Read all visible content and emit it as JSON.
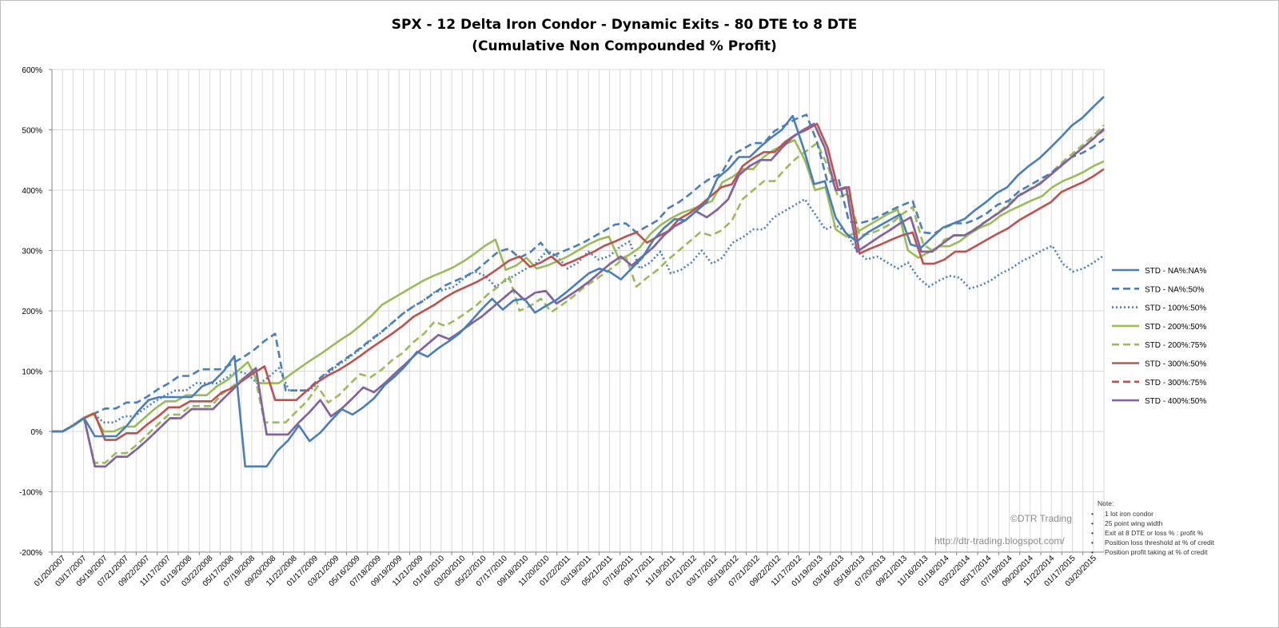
{
  "chart_data": {
    "type": "line",
    "title_lines": [
      "SPX  -  12 Delta Iron Condor  -  Dynamic Exits  -  80 DTE to 8 DTE",
      "(Cumulative Non Compounded % Profit)"
    ],
    "ylim": [
      -200,
      600
    ],
    "y_ticks": [
      -200,
      -100,
      0,
      100,
      200,
      300,
      400,
      500,
      600
    ],
    "y_tick_labels": [
      "-200%",
      "-100%",
      "0%",
      "100%",
      "200%",
      "300%",
      "400%",
      "500%",
      "600%"
    ],
    "x_tick_labels": [
      "01/20/2007",
      "03/17/2007",
      "05/19/2007",
      "07/21/2007",
      "09/22/2007",
      "11/17/2007",
      "01/19/2008",
      "03/22/2008",
      "05/17/2008",
      "07/19/2008",
      "09/20/2008",
      "11/22/2008",
      "01/17/2009",
      "03/21/2009",
      "05/16/2009",
      "07/18/2009",
      "09/19/2009",
      "11/21/2009",
      "01/16/2010",
      "03/20/2010",
      "05/22/2010",
      "07/17/2010",
      "09/18/2010",
      "11/20/2010",
      "01/22/2011",
      "03/19/2011",
      "05/21/2011",
      "07/16/2011",
      "09/17/2011",
      "11/19/2011",
      "01/21/2012",
      "03/17/2012",
      "05/19/2012",
      "07/21/2012",
      "09/22/2012",
      "11/17/2012",
      "01/19/2013",
      "03/16/2013",
      "05/18/2013",
      "07/20/2013",
      "09/21/2013",
      "11/16/2013",
      "01/18/2014",
      "03/22/2014",
      "05/17/2014",
      "07/19/2014",
      "09/20/2014",
      "11/22/2014",
      "01/17/2015",
      "03/20/2015"
    ],
    "series": [
      {
        "name": "STD - NA%:NA%",
        "color": "#4a7ebb",
        "dash": "solid",
        "values": [
          0,
          0,
          10,
          22,
          -8,
          -8,
          -8,
          10,
          33,
          52,
          57,
          57,
          57,
          57,
          75,
          82,
          100,
          125,
          -58,
          -58,
          -58,
          -32,
          -15,
          10,
          -16,
          -2,
          18,
          37,
          28,
          40,
          55,
          77,
          92,
          110,
          132,
          124,
          138,
          150,
          163,
          182,
          202,
          220,
          202,
          217,
          220,
          197,
          208,
          218,
          232,
          247,
          262,
          270,
          264,
          252,
          270,
          288,
          317,
          337,
          352,
          350,
          365,
          380,
          420,
          435,
          455,
          455,
          472,
          487,
          500,
          523,
          470,
          410,
          415,
          355,
          328,
          315,
          330,
          340,
          350,
          360,
          310,
          305,
          322,
          338,
          345,
          352,
          367,
          380,
          395,
          405,
          425,
          440,
          453,
          470,
          488,
          507,
          520,
          538,
          555
        ]
      },
      {
        "name": "STD - NA%:50%",
        "color": "#4a7ebb",
        "dash": "long",
        "values": [
          0,
          0,
          10,
          22,
          30,
          38,
          38,
          48,
          48,
          58,
          70,
          80,
          92,
          92,
          103,
          103,
          103,
          113,
          123,
          135,
          150,
          162,
          68,
          68,
          68,
          85,
          100,
          113,
          125,
          138,
          152,
          165,
          180,
          195,
          207,
          217,
          230,
          242,
          250,
          258,
          268,
          283,
          298,
          303,
          288,
          297,
          313,
          290,
          298,
          305,
          313,
          323,
          333,
          343,
          345,
          330,
          340,
          350,
          370,
          380,
          393,
          408,
          420,
          428,
          458,
          468,
          478,
          478,
          498,
          508,
          518,
          525,
          480,
          412,
          420,
          348,
          345,
          350,
          358,
          367,
          375,
          382,
          330,
          328,
          338,
          345,
          345,
          352,
          362,
          376,
          382,
          398,
          408,
          418,
          428,
          442,
          455,
          462,
          472,
          485
        ]
      },
      {
        "name": "STD - 100%:50%",
        "color": "#4a7ebb",
        "dash": "dot",
        "values": [
          0,
          0,
          10,
          22,
          30,
          15,
          15,
          25,
          25,
          38,
          50,
          60,
          68,
          68,
          80,
          80,
          80,
          90,
          100,
          95,
          78,
          90,
          105,
          68,
          68,
          68,
          85,
          100,
          113,
          125,
          138,
          152,
          165,
          180,
          195,
          207,
          217,
          230,
          235,
          240,
          255,
          265,
          258,
          240,
          250,
          260,
          270,
          280,
          300,
          290,
          270,
          280,
          298,
          285,
          290,
          305,
          315,
          270,
          280,
          298,
          262,
          268,
          280,
          300,
          278,
          288,
          313,
          322,
          335,
          335,
          355,
          365,
          375,
          385,
          360,
          335,
          342,
          330,
          300,
          285,
          290,
          280,
          270,
          280,
          255,
          240,
          250,
          258,
          255,
          237,
          242,
          250,
          262,
          270,
          282,
          290,
          300,
          308,
          278,
          265,
          270,
          280,
          292
        ]
      },
      {
        "name": "STD - 200%:50%",
        "color": "#9bbb59",
        "dash": "solid",
        "values": [
          0,
          0,
          10,
          22,
          30,
          0,
          0,
          8,
          8,
          23,
          38,
          50,
          50,
          60,
          60,
          60,
          75,
          85,
          100,
          115,
          80,
          80,
          80,
          93,
          105,
          117,
          128,
          140,
          152,
          163,
          177,
          192,
          210,
          220,
          230,
          240,
          250,
          258,
          265,
          273,
          283,
          295,
          308,
          318,
          268,
          275,
          288,
          270,
          275,
          282,
          290,
          300,
          310,
          318,
          323,
          285,
          293,
          305,
          327,
          342,
          353,
          362,
          368,
          375,
          382,
          413,
          422,
          435,
          435,
          455,
          467,
          475,
          483,
          450,
          400,
          405,
          335,
          323,
          330,
          340,
          350,
          360,
          368,
          300,
          288,
          297,
          307,
          307,
          315,
          328,
          338,
          345,
          358,
          367,
          375,
          383,
          390,
          405,
          415,
          422,
          430,
          440,
          448
        ]
      },
      {
        "name": "STD - 200%:75%",
        "color": "#9bbb59",
        "dash": "long",
        "values": [
          0,
          0,
          10,
          22,
          -52,
          -52,
          -36,
          -36,
          -22,
          -5,
          12,
          28,
          28,
          42,
          42,
          42,
          62,
          75,
          88,
          100,
          15,
          15,
          15,
          33,
          50,
          75,
          48,
          60,
          78,
          95,
          90,
          102,
          118,
          130,
          148,
          162,
          182,
          175,
          185,
          197,
          210,
          227,
          240,
          258,
          200,
          208,
          220,
          198,
          210,
          223,
          238,
          250,
          262,
          275,
          290,
          240,
          255,
          268,
          285,
          300,
          315,
          330,
          325,
          333,
          350,
          385,
          400,
          415,
          415,
          435,
          452,
          465,
          478,
          440,
          388,
          395,
          325,
          328,
          335,
          345,
          360,
          372,
          310,
          298,
          318,
          325,
          325,
          338,
          350,
          362,
          377,
          392,
          402,
          412,
          428,
          445,
          460,
          475,
          490,
          508
        ]
      },
      {
        "name": "STD - 300%:50%",
        "color": "#c0504d",
        "dash": "solid",
        "values": [
          0,
          0,
          10,
          22,
          30,
          -14,
          -14,
          -3,
          -3,
          12,
          25,
          40,
          40,
          50,
          50,
          50,
          65,
          72,
          85,
          97,
          108,
          52,
          52,
          52,
          68,
          82,
          93,
          102,
          113,
          125,
          138,
          150,
          162,
          175,
          190,
          200,
          210,
          222,
          232,
          240,
          248,
          258,
          270,
          283,
          290,
          273,
          280,
          290,
          275,
          282,
          290,
          298,
          308,
          315,
          323,
          330,
          313,
          323,
          332,
          352,
          362,
          375,
          390,
          405,
          410,
          440,
          453,
          463,
          463,
          480,
          492,
          500,
          510,
          470,
          400,
          405,
          295,
          303,
          310,
          318,
          325,
          330,
          278,
          278,
          285,
          298,
          298,
          308,
          318,
          328,
          337,
          350,
          360,
          370,
          380,
          397,
          405,
          413,
          423,
          435
        ]
      },
      {
        "name": "STD - 300%:75%",
        "color": "#c0504d",
        "dash": "long",
        "values": [
          0,
          0,
          10,
          22,
          -58,
          -58,
          -42,
          -42,
          -28,
          -12,
          5,
          22,
          22,
          37,
          37,
          37,
          55,
          72,
          90,
          105,
          -5,
          -5,
          -5,
          15,
          32,
          52,
          25,
          38,
          55,
          73,
          65,
          80,
          97,
          113,
          130,
          145,
          160,
          153,
          165,
          178,
          190,
          205,
          220,
          235,
          218,
          230,
          233,
          212,
          223,
          235,
          248,
          263,
          278,
          290,
          275,
          290,
          305,
          325,
          340,
          350,
          365,
          355,
          368,
          385,
          425,
          440,
          450,
          450,
          470,
          488,
          500,
          510,
          470,
          400,
          405,
          298,
          310,
          322,
          333,
          345,
          355,
          298,
          298,
          312,
          325,
          325,
          335,
          348,
          360,
          372,
          390,
          400,
          410,
          425,
          440,
          455,
          470,
          485,
          500
        ]
      },
      {
        "name": "STD - 400%:50%",
        "color": "#8064a2",
        "dash": "solid",
        "values": [
          0,
          0,
          10,
          22,
          -58,
          -58,
          -42,
          -42,
          -28,
          -12,
          5,
          22,
          22,
          37,
          37,
          37,
          55,
          72,
          90,
          105,
          -5,
          -5,
          -5,
          15,
          32,
          52,
          25,
          38,
          55,
          73,
          65,
          80,
          97,
          113,
          130,
          145,
          160,
          153,
          165,
          178,
          190,
          205,
          220,
          235,
          218,
          230,
          233,
          212,
          223,
          235,
          248,
          263,
          278,
          290,
          275,
          290,
          305,
          325,
          340,
          350,
          365,
          355,
          368,
          385,
          425,
          440,
          450,
          450,
          470,
          488,
          500,
          510,
          470,
          400,
          405,
          298,
          310,
          322,
          333,
          345,
          355,
          298,
          298,
          312,
          325,
          325,
          335,
          348,
          360,
          372,
          390,
          400,
          410,
          425,
          440,
          455,
          470,
          485,
          502
        ]
      }
    ],
    "legend_position": "right",
    "grid": true
  },
  "watermark": {
    "copyright": "©DTR Trading",
    "url": "http://dtr-trading.blogspot.com/"
  },
  "note": {
    "heading": "Note:",
    "items": [
      "1 lot iron condor",
      "25 point wing width",
      "Exit at 8 DTE or loss % : profit %",
      "Position loss threshold at % of credit",
      "Position profit taking at % of credit"
    ]
  }
}
